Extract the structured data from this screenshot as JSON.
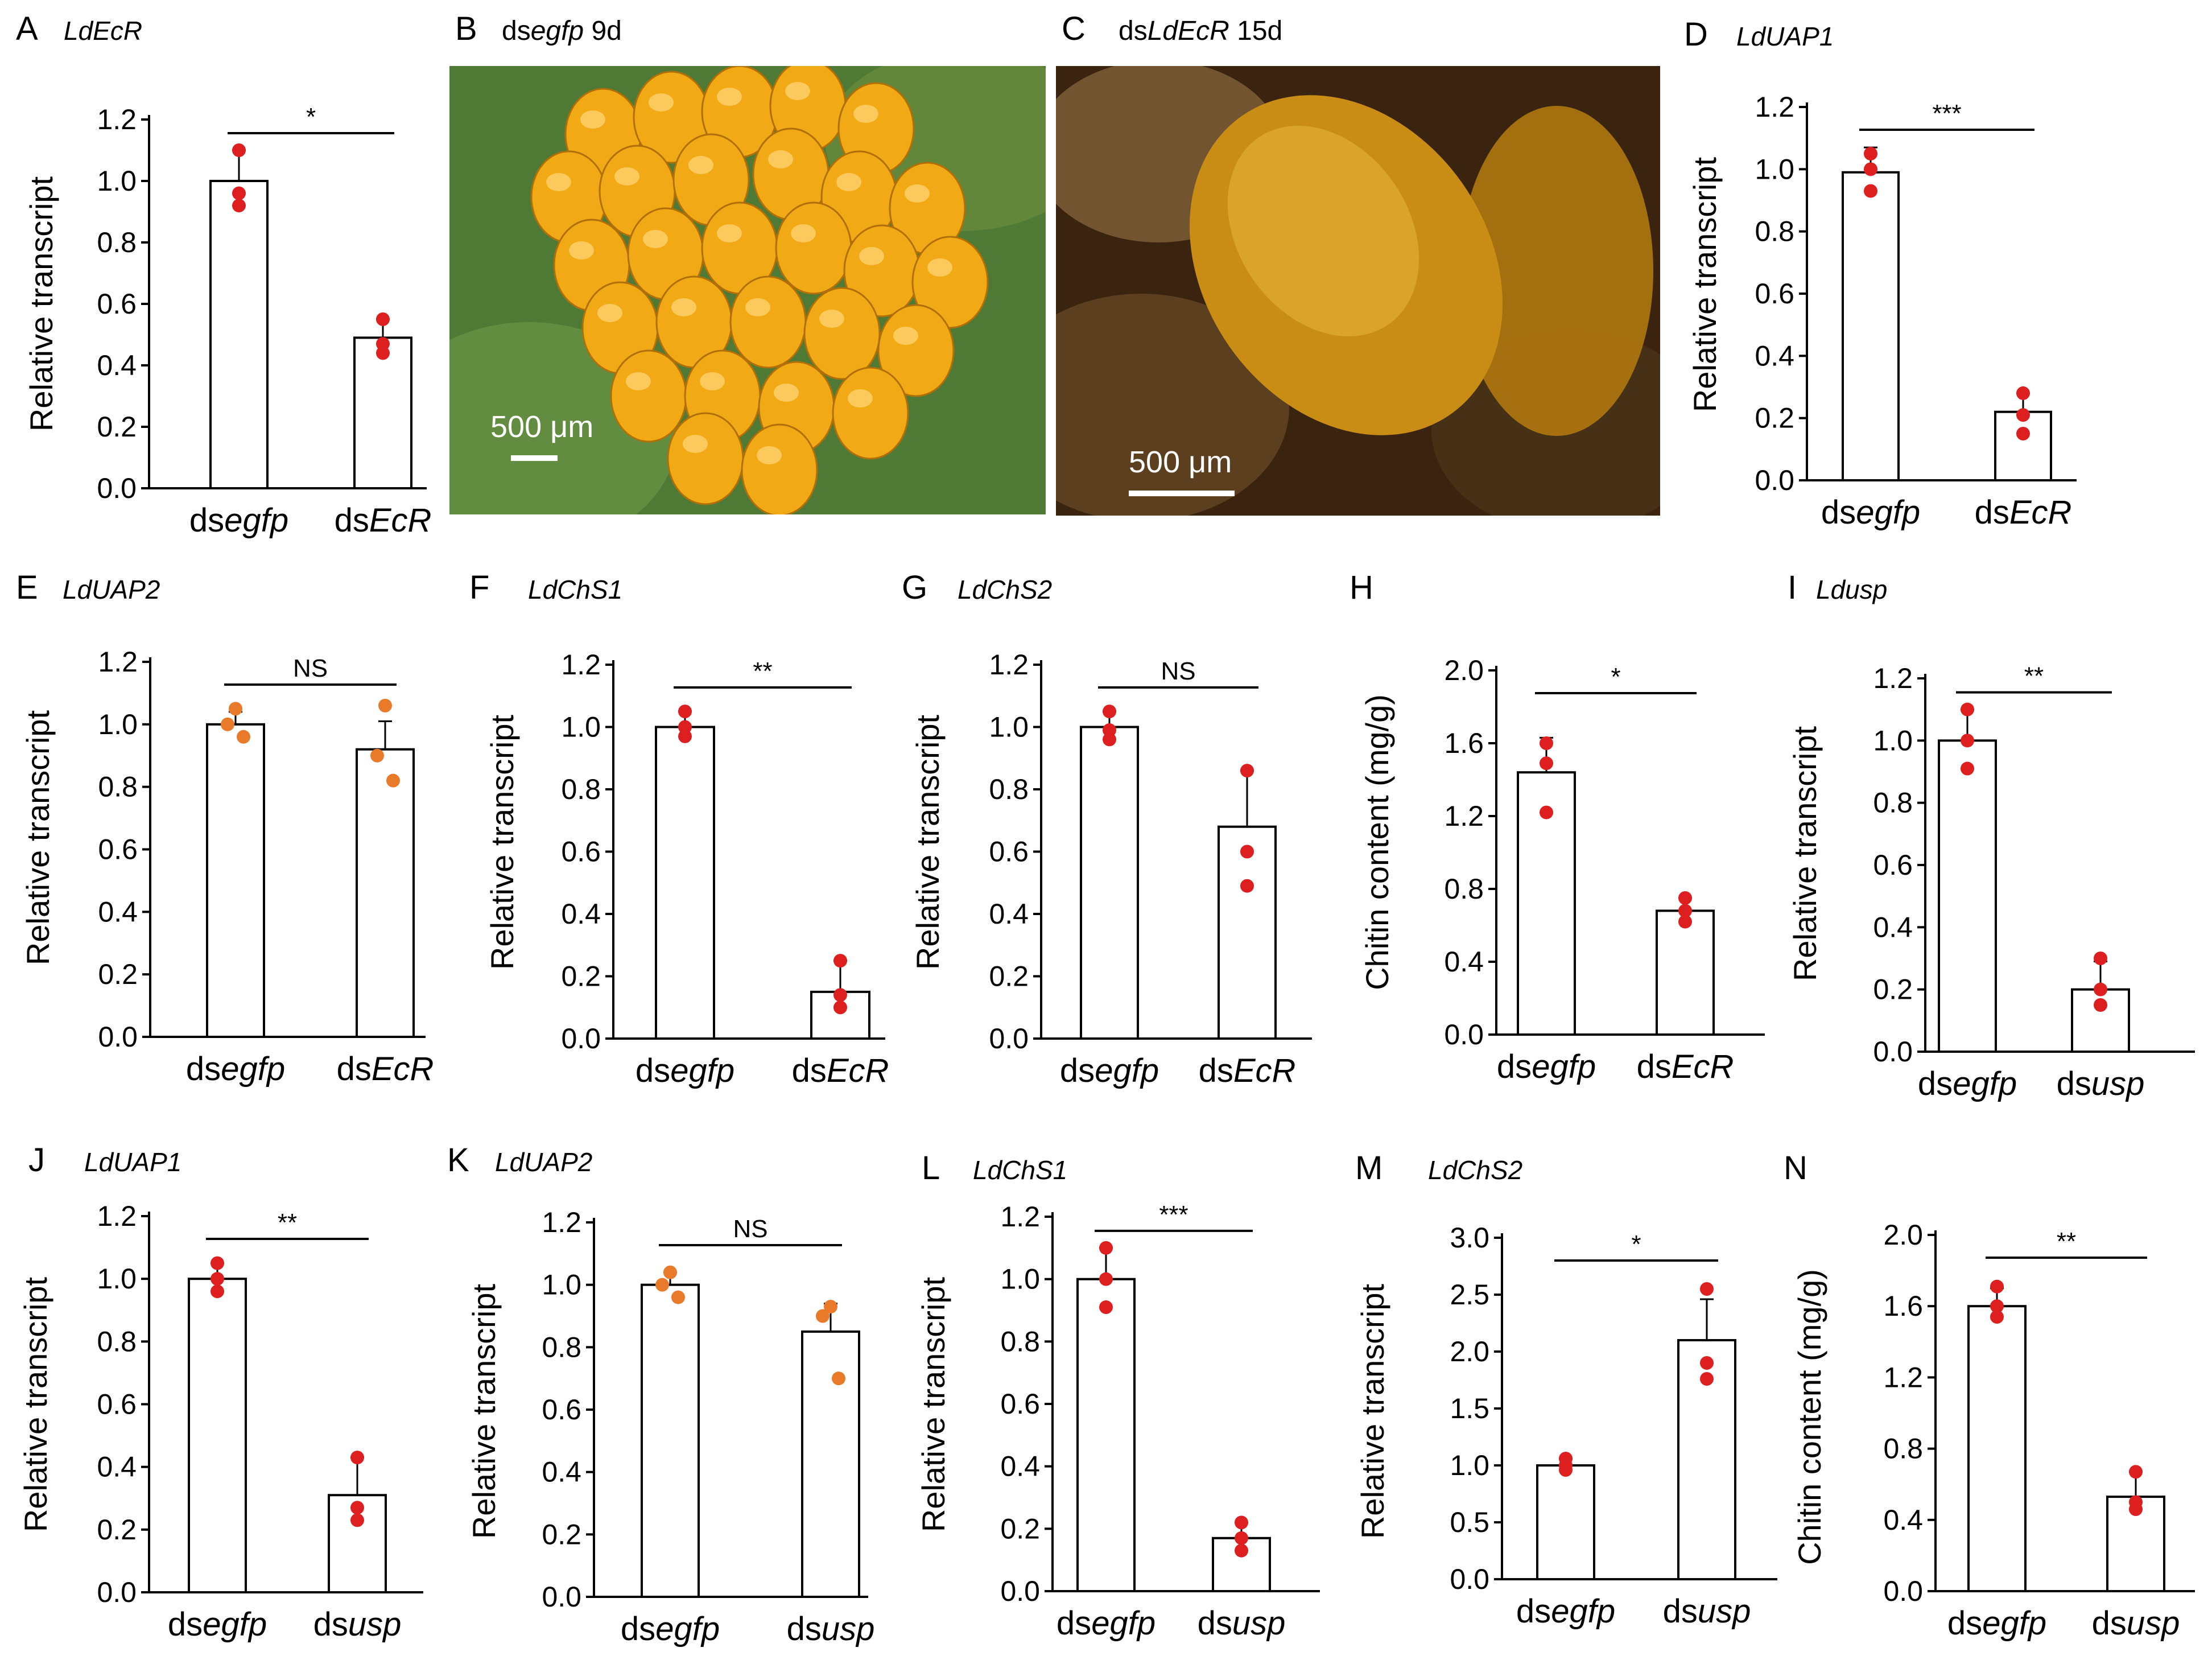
{
  "colors": {
    "point_red": "#dd1f1f",
    "point_orange": "#e87a2a",
    "bar_fill": "#ffffff",
    "axis": "#000000",
    "leaf_green": "#4f7a36",
    "egg_yellow": "#f2a916",
    "pupa_bg": "#3a2410",
    "pupa_body": "#c98d16"
  },
  "photos": [
    {
      "letter": "B",
      "caption_prefix": "ds",
      "caption_gene": "egfp",
      "caption_suffix": " 9d",
      "scale_text": "500 μm",
      "image_desc": "egg-cluster-on-leaf"
    },
    {
      "letter": "C",
      "caption_prefix": "ds",
      "caption_gene": "LdEcR",
      "caption_suffix": " 15d",
      "scale_text": "500 μm",
      "image_desc": "pupa-in-soil"
    }
  ],
  "chart_data": [
    {
      "type": "bar",
      "panel": "A",
      "title": "LdEcR",
      "ylabel": "Relative transcript",
      "ylim": [
        0,
        1.2
      ],
      "yticks": [
        0.0,
        0.2,
        0.4,
        0.6,
        0.8,
        1.0,
        1.2
      ],
      "ytick_labels": [
        "0.0",
        "0.2",
        "0.4",
        "0.6",
        "0.8",
        "1.0",
        "1.2"
      ],
      "categories": [
        {
          "prefix": "ds",
          "name": "egfp"
        },
        {
          "prefix": "ds",
          "name": "EcR"
        }
      ],
      "values": [
        1.0,
        0.49
      ],
      "errors": [
        0.1,
        0.06
      ],
      "points": [
        [
          1.1,
          0.96,
          0.92
        ],
        [
          0.55,
          0.47,
          0.44
        ]
      ],
      "point_color": "red",
      "significance": "*"
    },
    {
      "type": "bar",
      "panel": "D",
      "title": "LdUAP1",
      "ylabel": "Relative transcript",
      "ylim": [
        0,
        1.2
      ],
      "yticks": [
        0.0,
        0.2,
        0.4,
        0.6,
        0.8,
        1.0,
        1.2
      ],
      "ytick_labels": [
        "0.0",
        "0.2",
        "0.4",
        "0.6",
        "0.8",
        "1.0",
        "1.2"
      ],
      "categories": [
        {
          "prefix": "ds",
          "name": "egfp"
        },
        {
          "prefix": "ds",
          "name": "EcR"
        }
      ],
      "values": [
        0.99,
        0.22
      ],
      "errors": [
        0.08,
        0.06
      ],
      "points": [
        [
          1.05,
          1.0,
          0.93
        ],
        [
          0.28,
          0.21,
          0.15
        ]
      ],
      "point_color": "red",
      "significance": "***"
    },
    {
      "type": "bar",
      "panel": "E",
      "title": "LdUAP2",
      "ylabel": "Relative transcript",
      "ylim": [
        0,
        1.2
      ],
      "yticks": [
        0.0,
        0.2,
        0.4,
        0.6,
        0.8,
        1.0,
        1.2
      ],
      "ytick_labels": [
        "0.0",
        "0.2",
        "0.4",
        "0.6",
        "0.8",
        "1.0",
        "1.2"
      ],
      "categories": [
        {
          "prefix": "ds",
          "name": "egfp"
        },
        {
          "prefix": "ds",
          "name": "EcR"
        }
      ],
      "values": [
        1.0,
        0.92
      ],
      "errors": [
        0.04,
        0.09
      ],
      "points": [
        [
          1.05,
          1.0,
          0.96
        ],
        [
          1.06,
          0.9,
          0.82
        ]
      ],
      "point_color": "orange",
      "significance": "NS"
    },
    {
      "type": "bar",
      "panel": "F",
      "title": "LdChS1",
      "ylabel": "Relative transcript",
      "ylim": [
        0,
        1.2
      ],
      "yticks": [
        0.0,
        0.2,
        0.4,
        0.6,
        0.8,
        1.0,
        1.2
      ],
      "ytick_labels": [
        "0.0",
        "0.2",
        "0.4",
        "0.6",
        "0.8",
        "1.0",
        "1.2"
      ],
      "categories": [
        {
          "prefix": "ds",
          "name": "egfp"
        },
        {
          "prefix": "ds",
          "name": "EcR"
        }
      ],
      "values": [
        1.0,
        0.15
      ],
      "errors": [
        0.05,
        0.1
      ],
      "points": [
        [
          1.05,
          1.0,
          0.97
        ],
        [
          0.25,
          0.14,
          0.1
        ]
      ],
      "point_color": "red",
      "significance": "**"
    },
    {
      "type": "bar",
      "panel": "G",
      "title": "LdChS2",
      "ylabel": "Relative transcript",
      "ylim": [
        0,
        1.2
      ],
      "yticks": [
        0.0,
        0.2,
        0.4,
        0.6,
        0.8,
        1.0,
        1.2
      ],
      "ytick_labels": [
        "0.0",
        "0.2",
        "0.4",
        "0.6",
        "0.8",
        "1.0",
        "1.2"
      ],
      "categories": [
        {
          "prefix": "ds",
          "name": "egfp"
        },
        {
          "prefix": "ds",
          "name": "EcR"
        }
      ],
      "values": [
        1.0,
        0.68
      ],
      "errors": [
        0.05,
        0.18
      ],
      "points": [
        [
          1.05,
          0.99,
          0.96
        ],
        [
          0.86,
          0.6,
          0.49
        ]
      ],
      "point_color": "red",
      "significance": "NS"
    },
    {
      "type": "bar",
      "panel": "H",
      "title": "",
      "ylabel": "Chitin content (mg/g)",
      "ylim": [
        0,
        2.0
      ],
      "yticks": [
        0.0,
        0.4,
        0.8,
        1.2,
        1.6,
        2.0
      ],
      "ytick_labels": [
        "0.0",
        "0.4",
        "0.8",
        "1.2",
        "1.6",
        "2.0"
      ],
      "categories": [
        {
          "prefix": "ds",
          "name": "egfp"
        },
        {
          "prefix": "ds",
          "name": "EcR"
        }
      ],
      "values": [
        1.44,
        0.68
      ],
      "errors": [
        0.19,
        0.07
      ],
      "points": [
        [
          1.6,
          1.49,
          1.22
        ],
        [
          0.75,
          0.68,
          0.62
        ]
      ],
      "point_color": "red",
      "significance": "*"
    },
    {
      "type": "bar",
      "panel": "I",
      "title": "Ldusp",
      "ylabel": "Relative transcript",
      "ylim": [
        0,
        1.2
      ],
      "yticks": [
        0.0,
        0.2,
        0.4,
        0.6,
        0.8,
        1.0,
        1.2
      ],
      "ytick_labels": [
        "0.0",
        "0.2",
        "0.4",
        "0.6",
        "0.8",
        "1.0",
        "1.2"
      ],
      "categories": [
        {
          "prefix": "ds",
          "name": "egfp"
        },
        {
          "prefix": "ds",
          "name": "usp"
        }
      ],
      "values": [
        1.0,
        0.2
      ],
      "errors": [
        0.1,
        0.09
      ],
      "points": [
        [
          1.1,
          1.0,
          0.91
        ],
        [
          0.3,
          0.2,
          0.15
        ]
      ],
      "point_color": "red",
      "significance": "**"
    },
    {
      "type": "bar",
      "panel": "J",
      "title": "LdUAP1",
      "ylabel": "Relative transcript",
      "ylim": [
        0,
        1.2
      ],
      "yticks": [
        0.0,
        0.2,
        0.4,
        0.6,
        0.8,
        1.0,
        1.2
      ],
      "ytick_labels": [
        "0.0",
        "0.2",
        "0.4",
        "0.6",
        "0.8",
        "1.0",
        "1.2"
      ],
      "categories": [
        {
          "prefix": "ds",
          "name": "egfp"
        },
        {
          "prefix": "ds",
          "name": "usp"
        }
      ],
      "values": [
        1.0,
        0.31
      ],
      "errors": [
        0.05,
        0.12
      ],
      "points": [
        [
          1.05,
          1.0,
          0.96
        ],
        [
          0.43,
          0.27,
          0.23
        ]
      ],
      "point_color": "red",
      "significance": "**"
    },
    {
      "type": "bar",
      "panel": "K",
      "title": "LdUAP2",
      "ylabel": "Relative transcript",
      "ylim": [
        0,
        1.2
      ],
      "yticks": [
        0.0,
        0.2,
        0.4,
        0.6,
        0.8,
        1.0,
        1.2
      ],
      "ytick_labels": [
        "0.0",
        "0.2",
        "0.4",
        "0.6",
        "0.8",
        "1.0",
        "1.2"
      ],
      "categories": [
        {
          "prefix": "ds",
          "name": "egfp"
        },
        {
          "prefix": "ds",
          "name": "usp"
        }
      ],
      "values": [
        1.0,
        0.85
      ],
      "errors": [
        0.04,
        0.09
      ],
      "points": [
        [
          1.04,
          1.0,
          0.96
        ],
        [
          0.93,
          0.9,
          0.7
        ]
      ],
      "point_color": "orange",
      "significance": "NS"
    },
    {
      "type": "bar",
      "panel": "L",
      "title": "LdChS1",
      "ylabel": "Relative transcript",
      "ylim": [
        0,
        1.2
      ],
      "yticks": [
        0.0,
        0.2,
        0.4,
        0.6,
        0.8,
        1.0,
        1.2
      ],
      "ytick_labels": [
        "0.0",
        "0.2",
        "0.4",
        "0.6",
        "0.8",
        "1.0",
        "1.2"
      ],
      "categories": [
        {
          "prefix": "ds",
          "name": "egfp"
        },
        {
          "prefix": "ds",
          "name": "usp"
        }
      ],
      "values": [
        1.0,
        0.17
      ],
      "errors": [
        0.1,
        0.05
      ],
      "points": [
        [
          1.1,
          1.0,
          0.91
        ],
        [
          0.22,
          0.17,
          0.13
        ]
      ],
      "point_color": "red",
      "significance": "***"
    },
    {
      "type": "bar",
      "panel": "M",
      "title": "LdChS2",
      "ylabel": "Relative transcript",
      "ylim": [
        0,
        3.0
      ],
      "yticks": [
        0.0,
        0.5,
        1.0,
        1.5,
        2.0,
        2.5,
        3.0
      ],
      "ytick_labels": [
        "0.0",
        "0.5",
        "1.0",
        "1.5",
        "2.0",
        "2.5",
        "3.0"
      ],
      "categories": [
        {
          "prefix": "ds",
          "name": "egfp"
        },
        {
          "prefix": "ds",
          "name": "usp"
        }
      ],
      "values": [
        1.0,
        2.1
      ],
      "errors": [
        0.06,
        0.36
      ],
      "points": [
        [
          1.06,
          1.0,
          0.96
        ],
        [
          2.55,
          1.9,
          1.76
        ]
      ],
      "point_color": "red",
      "significance": "*"
    },
    {
      "type": "bar",
      "panel": "N",
      "title": "",
      "ylabel": "Chitin content (mg/g)",
      "ylim": [
        0,
        2.0
      ],
      "yticks": [
        0.0,
        0.4,
        0.8,
        1.2,
        1.6,
        2.0
      ],
      "ytick_labels": [
        "0.0",
        "0.4",
        "0.8",
        "1.2",
        "1.6",
        "2.0"
      ],
      "categories": [
        {
          "prefix": "ds",
          "name": "egfp"
        },
        {
          "prefix": "ds",
          "name": "usp"
        }
      ],
      "values": [
        1.6,
        0.53
      ],
      "errors": [
        0.1,
        0.14
      ],
      "points": [
        [
          1.71,
          1.6,
          1.54
        ],
        [
          0.67,
          0.5,
          0.46
        ]
      ],
      "point_color": "red",
      "significance": "**"
    }
  ]
}
